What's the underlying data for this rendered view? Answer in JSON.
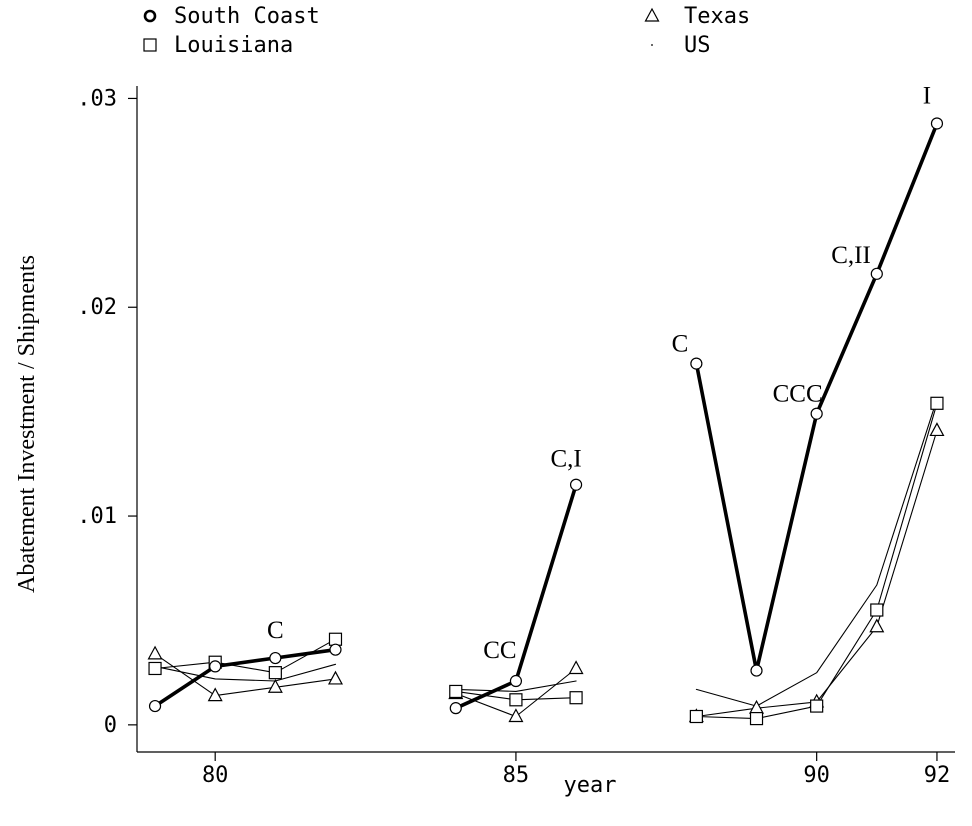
{
  "chart_data": {
    "type": "line",
    "xlabel": "year",
    "ylabel": "Abatement Investment / Shipments",
    "xlim": [
      78.7,
      92.3
    ],
    "ylim": [
      -0.0013,
      0.0305
    ],
    "x_ticks": [
      {
        "value": 80,
        "label": "80"
      },
      {
        "value": 85,
        "label": "85"
      },
      {
        "value": 90,
        "label": "90"
      },
      {
        "value": 92,
        "label": "92"
      }
    ],
    "y_ticks": [
      {
        "value": 0,
        "label": "0"
      },
      {
        "value": 0.01,
        "label": ".01"
      },
      {
        "value": 0.02,
        "label": ".02"
      },
      {
        "value": 0.03,
        "label": ".03"
      }
    ],
    "legend": {
      "placement": "top",
      "entries": [
        {
          "series": "South Coast",
          "label": "South Coast",
          "marker": "circle-bold"
        },
        {
          "series": "Louisiana",
          "label": "Louisiana",
          "marker": "square"
        },
        {
          "series": "Texas",
          "label": "Texas",
          "marker": "triangle"
        },
        {
          "series": "US",
          "label": "US",
          "marker": "dot"
        }
      ]
    },
    "series": [
      {
        "name": "South Coast",
        "style": "thick",
        "marker": "circle",
        "segments": [
          [
            [
              79,
              0.0009
            ],
            [
              80,
              0.0028
            ],
            [
              81,
              0.0032
            ],
            [
              82,
              0.0036
            ]
          ],
          [
            [
              84,
              0.0008
            ],
            [
              85,
              0.0021
            ],
            [
              86,
              0.0115
            ]
          ],
          [
            [
              88,
              0.0173
            ],
            [
              89,
              0.0026
            ],
            [
              90,
              0.0149
            ],
            [
              91,
              0.0216
            ],
            [
              92,
              0.0288
            ]
          ]
        ]
      },
      {
        "name": "Louisiana",
        "style": "thin",
        "marker": "square",
        "segments": [
          [
            [
              79,
              0.0027
            ],
            [
              80,
              0.003
            ],
            [
              81,
              0.0025
            ],
            [
              82,
              0.0041
            ]
          ],
          [
            [
              84,
              0.0016
            ],
            [
              85,
              0.0012
            ],
            [
              86,
              0.0013
            ]
          ],
          [
            [
              88,
              0.0004
            ],
            [
              89,
              0.0003
            ],
            [
              90,
              0.0009
            ],
            [
              91,
              0.0055
            ],
            [
              92,
              0.0154
            ]
          ]
        ]
      },
      {
        "name": "Texas",
        "style": "thin",
        "marker": "triangle",
        "segments": [
          [
            [
              79,
              0.0034
            ],
            [
              80,
              0.0014
            ],
            [
              81,
              0.0018
            ],
            [
              82,
              0.0022
            ]
          ],
          [
            [
              84,
              0.0015
            ],
            [
              85,
              0.0004
            ],
            [
              86,
              0.0027
            ]
          ],
          [
            [
              88,
              0.0004
            ],
            [
              89,
              0.0008
            ],
            [
              90,
              0.0011
            ],
            [
              91,
              0.0047
            ],
            [
              92,
              0.0141
            ]
          ]
        ]
      },
      {
        "name": "US",
        "style": "thin",
        "marker": "none",
        "segments": [
          [
            [
              79,
              0.0028
            ],
            [
              80,
              0.0022
            ],
            [
              81,
              0.0021
            ],
            [
              82,
              0.0029
            ]
          ],
          [
            [
              84,
              0.0017
            ],
            [
              85,
              0.0016
            ],
            [
              86,
              0.0021
            ]
          ],
          [
            [
              88,
              0.0017
            ],
            [
              89,
              0.0009
            ],
            [
              90,
              0.0025
            ],
            [
              91,
              0.0067
            ],
            [
              92,
              0.0156
            ]
          ]
        ]
      }
    ],
    "annotations": [
      {
        "text": "C",
        "x": 81,
        "y": 0.0032
      },
      {
        "text": "CC",
        "x": 85,
        "y": 0.0021
      },
      {
        "text": "C,I",
        "x": 86,
        "y": 0.0115
      },
      {
        "text": "C",
        "x": 88,
        "y": 0.0173
      },
      {
        "text": "CCC",
        "x": 90,
        "y": 0.0149
      },
      {
        "text": "C,II",
        "x": 91,
        "y": 0.0216
      },
      {
        "text": "I",
        "x": 92,
        "y": 0.0288
      }
    ]
  }
}
